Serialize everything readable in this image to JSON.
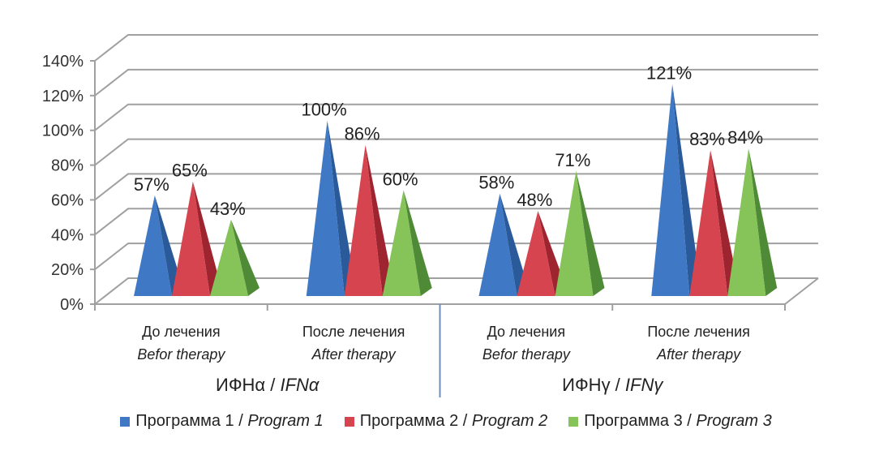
{
  "chart_data": {
    "type": "bar",
    "style": "3d-pyramid",
    "title": "",
    "xlabel": "",
    "ylabel": "",
    "ylim": [
      0,
      140
    ],
    "y_ticks": [
      "0%",
      "20%",
      "40%",
      "60%",
      "80%",
      "100%",
      "120%",
      "140%"
    ],
    "y_tick_values": [
      0,
      20,
      40,
      60,
      80,
      100,
      120,
      140
    ],
    "grid": true,
    "legend_position": "bottom",
    "groups": [
      {
        "label_ru": "ИФНα",
        "sep": " / ",
        "label_en": "IFNα"
      },
      {
        "label_ru": "ИФНγ",
        "sep": " / ",
        "label_en": "IFNγ"
      }
    ],
    "categories": [
      {
        "ru": "До лечения",
        "en": "Befor therapy",
        "group": 0
      },
      {
        "ru": "После лечения",
        "en": "After  therapy",
        "group": 0
      },
      {
        "ru": "До лечения",
        "en": "Befor therapy",
        "group": 1
      },
      {
        "ru": "После лечения",
        "en": "After  therapy",
        "group": 1
      }
    ],
    "series": [
      {
        "name_ru": "Программа 1",
        "sep": " / ",
        "name_en": "Program 1",
        "color": "#3f78c4",
        "shade": "#2a5a99",
        "values": [
          57,
          100,
          58,
          121
        ],
        "labels": [
          "57%",
          "100%",
          "58%",
          "121%"
        ]
      },
      {
        "name_ru": "Программа 2",
        "sep": " / ",
        "name_en": "Program 2",
        "color": "#d6454f",
        "shade": "#9e2530",
        "values": [
          65,
          86,
          48,
          83
        ],
        "labels": [
          "65%",
          "86%",
          "48%",
          "83%"
        ]
      },
      {
        "name_ru": "Программа 3",
        "sep": " / ",
        "name_en": "Program 3",
        "color": "#86c45a",
        "shade": "#4f8a37",
        "values": [
          43,
          60,
          71,
          84
        ],
        "labels": [
          "43%",
          "60%",
          "71%",
          "84%"
        ]
      }
    ]
  }
}
